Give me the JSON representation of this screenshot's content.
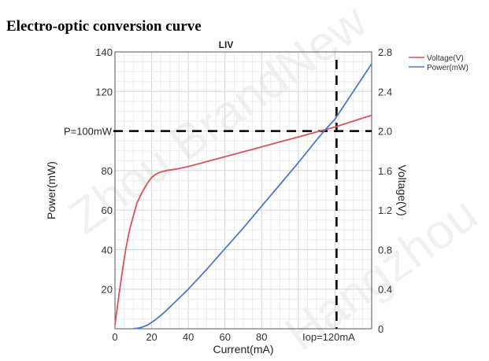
{
  "page_title": "Electro-optic conversion curve",
  "watermark": [
    "Zhou BrandNew",
    "Hangzhou"
  ],
  "colors": {
    "voltage": "#d9535f",
    "power": "#4a78cf",
    "grid_minor": "#ececec",
    "grid_major": "#d4d4d4"
  },
  "chart_data": {
    "type": "line",
    "title": "LIV",
    "xlabel": "Current(mA)",
    "ylabel": "Power(mW)",
    "y2label": "Voltage(V)",
    "xlim": [
      0,
      140
    ],
    "ylim": [
      0,
      140
    ],
    "y2lim": [
      0,
      2.8
    ],
    "x_ticks": [
      "0",
      "20",
      "40",
      "60",
      "80",
      "Iop=120mA"
    ],
    "y_ticks": [
      "20",
      "40",
      "60",
      "80",
      "120",
      "140"
    ],
    "y2_ticks": [
      "0",
      "0.4",
      "0.8",
      "1.2",
      "1.6",
      "2.0",
      "2.4",
      "2.8"
    ],
    "grid": true,
    "legend_position": "top-right",
    "series": [
      {
        "name": "Voltage(V)",
        "axis": "right",
        "x": [
          0,
          2,
          4,
          6,
          8,
          10,
          12,
          14,
          16,
          18,
          20,
          22,
          24,
          26,
          28,
          30,
          35,
          40,
          50,
          60,
          70,
          80,
          90,
          100,
          110,
          120,
          130,
          140
        ],
        "y": [
          0.04,
          0.32,
          0.58,
          0.82,
          1.0,
          1.14,
          1.27,
          1.35,
          1.42,
          1.48,
          1.53,
          1.56,
          1.58,
          1.59,
          1.6,
          1.605,
          1.62,
          1.64,
          1.69,
          1.74,
          1.79,
          1.84,
          1.89,
          1.94,
          1.99,
          2.04,
          2.1,
          2.16
        ]
      },
      {
        "name": "Power(mW)",
        "axis": "left",
        "x": [
          10,
          14,
          18,
          22,
          26,
          30,
          35,
          40,
          45,
          50,
          60,
          70,
          80,
          90,
          100,
          110,
          115,
          120,
          130,
          140
        ],
        "y": [
          0,
          0.5,
          2,
          4.5,
          7.5,
          11,
          15.5,
          20,
          25,
          30,
          40.5,
          51,
          62,
          73,
          84,
          95.5,
          101,
          106,
          120,
          134
        ]
      }
    ],
    "annotations": [
      {
        "label": "P=100mW",
        "y": 100,
        "axis": "left",
        "style": "dashed"
      },
      {
        "label": "Iop=120mA",
        "x": 120,
        "style": "dashed"
      }
    ]
  }
}
